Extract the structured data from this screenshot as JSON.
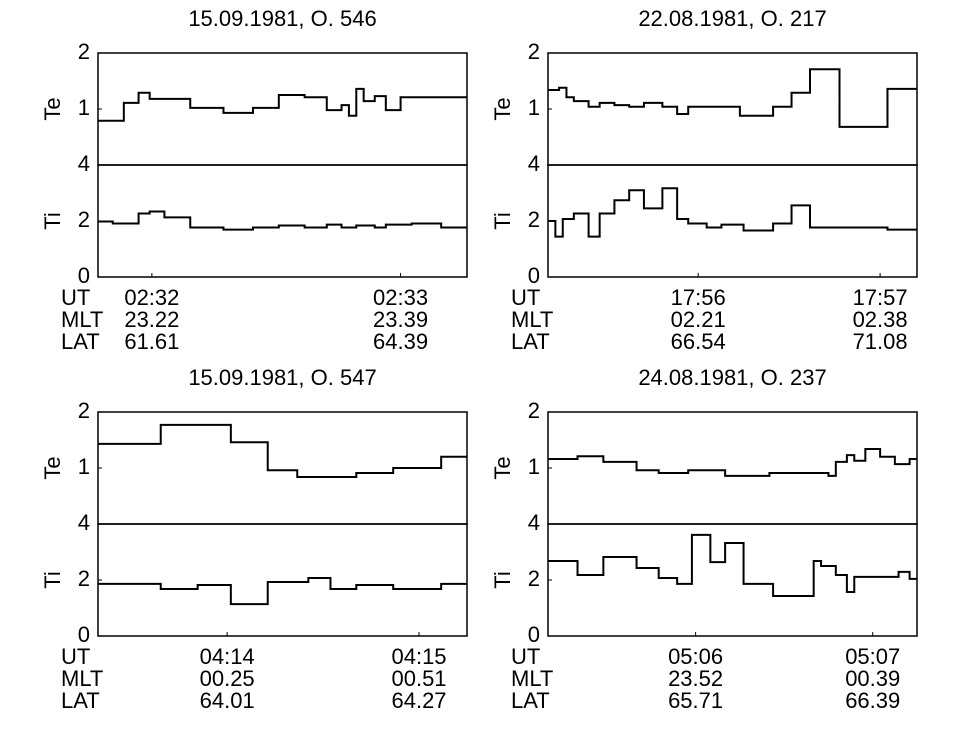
{
  "chart_data": [
    {
      "type": "step",
      "title": "15.09.1981, O. 546",
      "xlim": [
        0,
        100
      ],
      "row_labels": [
        "UT",
        "MLT",
        "LAT"
      ],
      "xticks": [
        {
          "value": 14.6,
          "label": "02:32"
        },
        {
          "value": 82,
          "label": "02:33"
        }
      ],
      "mlt": [
        "23.22",
        "23.39"
      ],
      "lat": [
        "61.61",
        "64.39"
      ],
      "top": {
        "ylabel": "Te",
        "ylim": [
          0,
          2
        ],
        "yticks": [
          1,
          2
        ],
        "x": [
          0,
          7,
          11,
          14,
          25,
          34,
          42,
          49,
          56,
          62,
          66,
          68,
          70,
          72,
          75,
          78,
          82,
          85
        ],
        "values": [
          0.79,
          1.11,
          1.29,
          1.18,
          1.02,
          0.93,
          1.02,
          1.25,
          1.21,
          0.98,
          1.07,
          0.88,
          1.36,
          1.14,
          1.23,
          0.98,
          1.21,
          1.21
        ]
      },
      "bottom": {
        "ylabel": "Ti",
        "ylim": [
          0,
          4
        ],
        "yticks": [
          0,
          2,
          4
        ],
        "x": [
          0,
          4,
          11,
          14,
          18,
          25,
          34,
          42,
          49,
          56,
          62,
          66,
          70,
          75,
          78,
          85,
          93
        ],
        "values": [
          1.98,
          1.91,
          2.27,
          2.34,
          2.13,
          1.77,
          1.69,
          1.77,
          1.84,
          1.77,
          1.87,
          1.77,
          1.84,
          1.77,
          1.87,
          1.91,
          1.77
        ]
      }
    },
    {
      "type": "step",
      "title": "22.08.1981, O. 217",
      "xlim": [
        0,
        100
      ],
      "row_labels": [
        "UT",
        "MLT",
        "LAT"
      ],
      "xticks": [
        {
          "value": 40.7,
          "label": "17:56"
        },
        {
          "value": 90,
          "label": "17:57"
        }
      ],
      "mlt": [
        "02.21",
        "02.38"
      ],
      "lat": [
        "66.54",
        "71.08"
      ],
      "top": {
        "ylabel": "Te",
        "ylim": [
          0,
          2
        ],
        "yticks": [
          1,
          2
        ],
        "x": [
          0,
          3,
          5,
          7,
          11,
          14,
          18,
          22,
          26,
          31,
          35,
          38,
          52,
          61,
          66,
          71,
          79,
          92
        ],
        "values": [
          1.34,
          1.38,
          1.21,
          1.14,
          1.04,
          1.11,
          1.07,
          1.04,
          1.11,
          1.04,
          0.91,
          1.04,
          0.88,
          1.04,
          1.29,
          1.71,
          0.68,
          1.36
        ]
      },
      "bottom": {
        "ylabel": "Ti",
        "ylim": [
          0,
          4
        ],
        "yticks": [
          0,
          2,
          4
        ],
        "x": [
          0,
          2,
          4,
          7,
          11,
          14,
          18,
          22,
          26,
          31,
          35,
          38,
          43,
          47,
          53,
          61,
          66,
          71,
          92
        ],
        "values": [
          2.0,
          1.44,
          2.07,
          2.27,
          1.44,
          2.27,
          2.74,
          3.1,
          2.45,
          3.17,
          2.07,
          1.91,
          1.77,
          1.87,
          1.66,
          1.91,
          2.56,
          1.77,
          1.69
        ]
      }
    },
    {
      "type": "step",
      "title": "15.09.1981, O. 547",
      "xlim": [
        0,
        100
      ],
      "row_labels": [
        "UT",
        "MLT",
        "LAT"
      ],
      "xticks": [
        {
          "value": 35,
          "label": "04:14"
        },
        {
          "value": 87,
          "label": "04:15"
        }
      ],
      "mlt": [
        "00.25",
        "00.51"
      ],
      "lat": [
        "64.01",
        "64.27"
      ],
      "top": {
        "ylabel": "Te",
        "ylim": [
          0,
          2
        ],
        "yticks": [
          1,
          2
        ],
        "x": [
          0,
          17,
          36,
          46,
          54,
          70,
          80,
          93
        ],
        "values": [
          1.43,
          1.77,
          1.46,
          0.96,
          0.84,
          0.91,
          1.0,
          1.2
        ]
      },
      "bottom": {
        "ylabel": "Ti",
        "ylim": [
          0,
          4
        ],
        "yticks": [
          0,
          2,
          4
        ],
        "x": [
          0,
          17,
          27,
          36,
          46,
          57,
          63,
          70,
          80,
          93
        ],
        "values": [
          1.86,
          1.68,
          1.82,
          1.14,
          1.93,
          2.07,
          1.68,
          1.82,
          1.68,
          1.86
        ]
      }
    },
    {
      "type": "step",
      "title": "24.08.1981, O. 237",
      "xlim": [
        0,
        100
      ],
      "row_labels": [
        "UT",
        "MLT",
        "LAT"
      ],
      "xticks": [
        {
          "value": 40,
          "label": "05:06"
        },
        {
          "value": 88,
          "label": "05:07"
        }
      ],
      "mlt": [
        "23.52",
        "00.39"
      ],
      "lat": [
        "65.71",
        "66.39"
      ],
      "top": {
        "ylabel": "Te",
        "ylim": [
          0,
          2
        ],
        "yticks": [
          1,
          2
        ],
        "x": [
          0,
          8,
          15,
          24,
          30,
          38,
          48,
          60,
          76,
          78,
          81,
          83,
          86,
          90,
          94,
          98
        ],
        "values": [
          1.16,
          1.21,
          1.11,
          0.96,
          0.91,
          0.96,
          0.86,
          0.91,
          0.86,
          1.11,
          1.23,
          1.13,
          1.34,
          1.2,
          1.07,
          1.16
        ]
      },
      "bottom": {
        "ylabel": "Ti",
        "ylim": [
          0,
          4
        ],
        "yticks": [
          0,
          2,
          4
        ],
        "x": [
          0,
          8,
          15,
          24,
          30,
          35,
          39,
          44,
          48,
          53,
          61,
          72,
          74,
          78,
          81,
          83,
          95,
          98
        ],
        "values": [
          2.68,
          2.18,
          2.82,
          2.43,
          2.07,
          1.86,
          3.61,
          2.64,
          3.32,
          1.86,
          1.43,
          2.68,
          2.5,
          2.18,
          1.57,
          2.11,
          2.29,
          2.04
        ]
      }
    }
  ]
}
